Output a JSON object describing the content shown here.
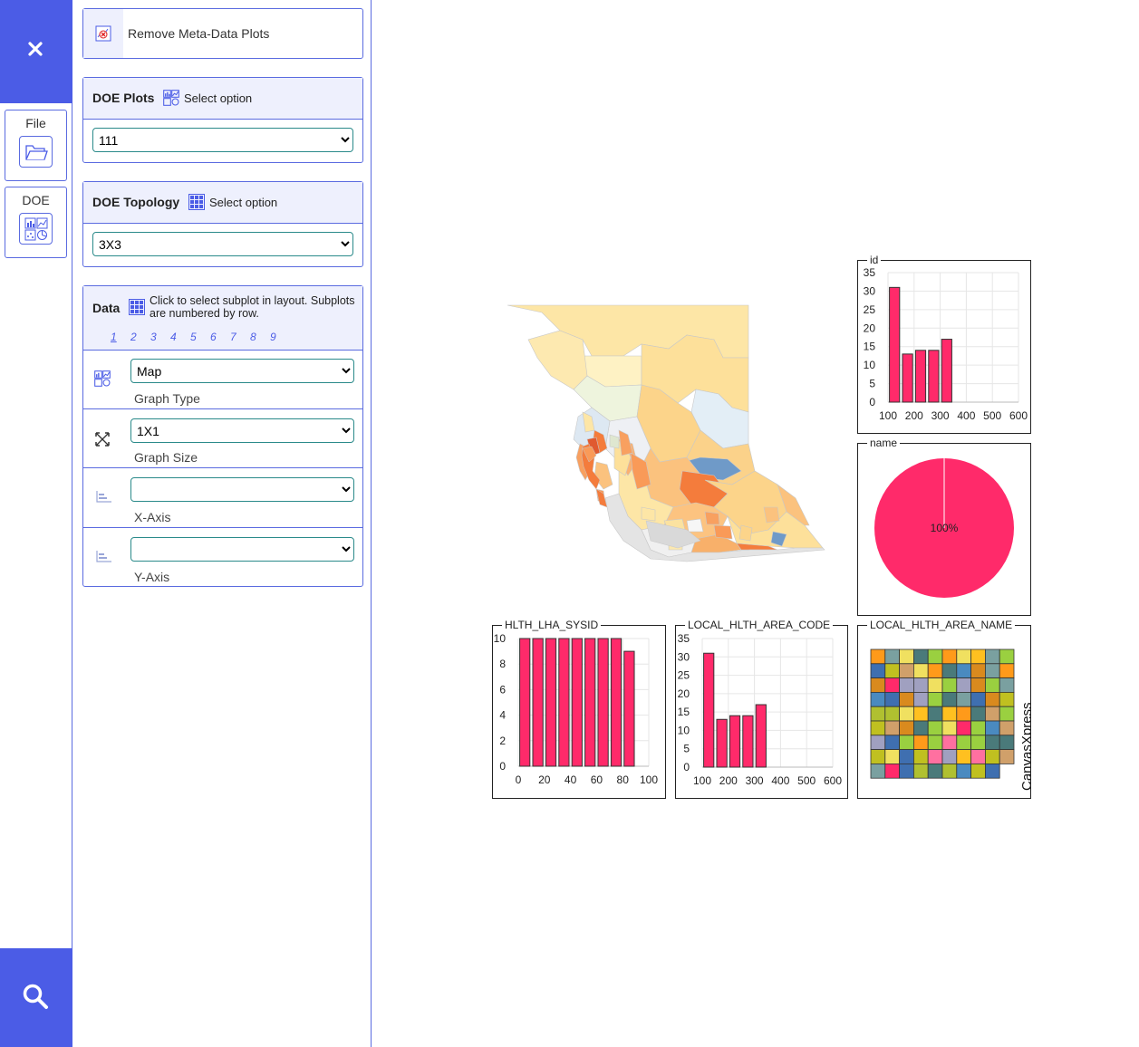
{
  "rail": {
    "close_icon": "close-icon",
    "file_label": "File",
    "doe_label": "DOE",
    "search_icon": "search-icon"
  },
  "remove_meta": {
    "label": "Remove Meta-Data Plots"
  },
  "doe_plots": {
    "title": "DOE Plots",
    "option_label": "Select option",
    "value": "111"
  },
  "doe_topology": {
    "title": "DOE Topology",
    "option_label": "Select option",
    "value": "3X3"
  },
  "data_section": {
    "title": "Data",
    "hint": "Click to select subplot in layout. Subplots are numbered by row.",
    "subplots": [
      "1",
      "2",
      "3",
      "4",
      "5",
      "6",
      "7",
      "8",
      "9"
    ],
    "graph_type": {
      "value": "Map",
      "caption": "Graph Type"
    },
    "graph_size": {
      "value": "1X1",
      "caption": "Graph Size"
    },
    "x_axis": {
      "value": "",
      "caption": "X-Axis"
    },
    "y_axis": {
      "value": "",
      "caption": "Y-Axis"
    }
  },
  "colors": {
    "accent": "#4b5ce6",
    "bar": "#ff2a6a"
  },
  "watermark": "CanvasXpress",
  "chart_data": [
    {
      "type": "map",
      "title": ""
    },
    {
      "type": "bar",
      "title": "id",
      "x": [
        125,
        175,
        225,
        275,
        325
      ],
      "values": [
        31,
        13,
        14,
        14,
        17
      ],
      "xticks": [
        "100",
        "200",
        "300",
        "400",
        "500",
        "600"
      ],
      "yticks": [
        "0",
        "5",
        "10",
        "15",
        "20",
        "25",
        "30",
        "35"
      ],
      "xlim": [
        100,
        600
      ],
      "ylim": [
        0,
        35
      ]
    },
    {
      "type": "pie",
      "title": "name",
      "slices": [
        100
      ],
      "label": "100%"
    },
    {
      "type": "bar",
      "title": "HLTH_LHA_SYSID",
      "x": [
        5,
        15,
        25,
        35,
        45,
        55,
        65,
        75,
        85
      ],
      "values": [
        10,
        10,
        10,
        10,
        10,
        10,
        10,
        10,
        9
      ],
      "xticks": [
        "0",
        "20",
        "40",
        "60",
        "80",
        "100"
      ],
      "yticks": [
        "0",
        "2",
        "4",
        "6",
        "8",
        "10"
      ],
      "xlim": [
        0,
        100
      ],
      "ylim": [
        0,
        10
      ]
    },
    {
      "type": "bar",
      "title": "LOCAL_HLTH_AREA_CODE",
      "x": [
        125,
        175,
        225,
        275,
        325
      ],
      "values": [
        31,
        13,
        14,
        14,
        17
      ],
      "xticks": [
        "100",
        "200",
        "300",
        "400",
        "500",
        "600"
      ],
      "yticks": [
        "0",
        "5",
        "10",
        "15",
        "20",
        "25",
        "30",
        "35"
      ],
      "xlim": [
        100,
        600
      ],
      "ylim": [
        0,
        35
      ]
    },
    {
      "type": "heatmap",
      "title": "LOCAL_HLTH_AREA_NAME"
    }
  ]
}
